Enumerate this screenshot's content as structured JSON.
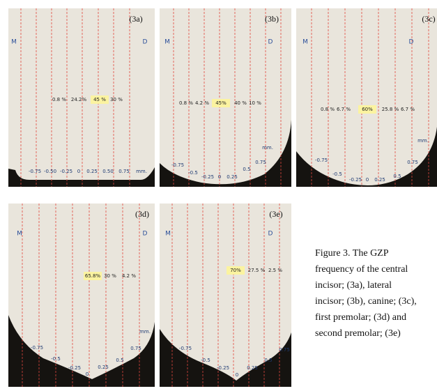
{
  "figure": {
    "panels": [
      {
        "label": "(3a)",
        "m": "M",
        "d": "D",
        "percents": [
          "0.8 %",
          "24.2%",
          "45 %",
          "30 %"
        ],
        "highlight": 2,
        "ticks": [
          "-0.75",
          "-0.50",
          "-0.25",
          "0",
          "0.25",
          "0.50",
          "0.75",
          "mm."
        ]
      },
      {
        "label": "(3b)",
        "m": "M",
        "d": "D",
        "percents": [
          "0.8 %",
          "4.2 %",
          "45%",
          "40 %",
          "10 %"
        ],
        "highlight": 2,
        "ticks": [
          "-0.75",
          "-0.5",
          "-0.25",
          "0",
          "0.25",
          "0.5",
          "0.75",
          "mm."
        ]
      },
      {
        "label": "(3c)",
        "m": "M",
        "d": "D",
        "percents": [
          "0.8 %",
          "6.7 %",
          "60%",
          "25.8 %",
          "6.7 %"
        ],
        "highlight": 2,
        "ticks": [
          "-0.75",
          "-0.5",
          "-0.25",
          "0",
          "0.25",
          "0.5",
          "0.75",
          "mm."
        ]
      },
      {
        "label": "(3d)",
        "m": "M",
        "d": "D",
        "percents": [
          "65.8%",
          "30 %",
          "4.2 %"
        ],
        "highlight": 0,
        "ticks": [
          "-0.75",
          "-0.5",
          "-0.25",
          "0",
          "0.25",
          "0.5",
          "0.75",
          "mm."
        ]
      },
      {
        "label": "(3e)",
        "m": "M",
        "d": "D",
        "percents": [
          "70%",
          "27.5 %",
          "2.5 %"
        ],
        "highlight": 0,
        "ticks": [
          "-0.75",
          "-0.5",
          "-0.25",
          "0",
          "0.25",
          "0.5",
          "0.75"
        ]
      }
    ],
    "caption": [
      "Figure 3. The GZP",
      "frequency of the central",
      "incisor; (3a), lateral",
      "incisor; (3b), canine; (3c),",
      "first premolar; (3d) and",
      "second premolar; (3e)"
    ]
  }
}
